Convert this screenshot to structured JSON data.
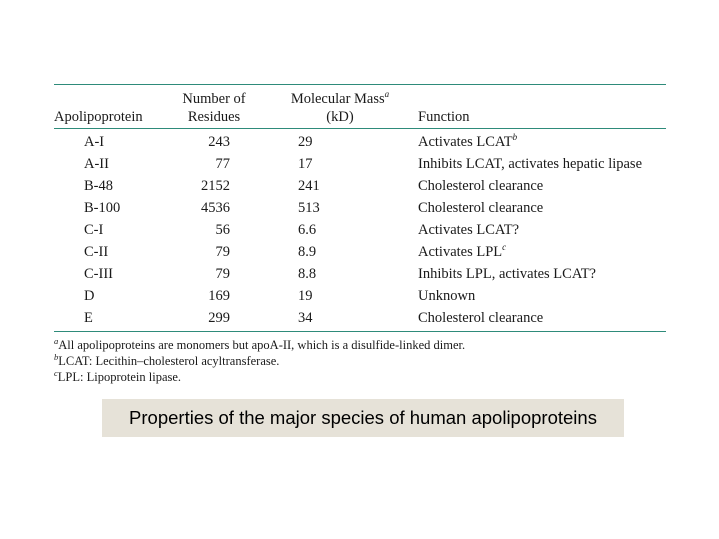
{
  "table": {
    "headers": {
      "apolipoprotein": "Apolipoprotein",
      "residues_line1": "Number of",
      "residues_line2": "Residues",
      "mass_line1": "Molecular Mass",
      "mass_sup": "a",
      "mass_line2": "(kD)",
      "function": "Function"
    },
    "rows": [
      {
        "name": "A-I",
        "residues": "243",
        "mass": "29",
        "function": "Activates LCAT",
        "sup": "b"
      },
      {
        "name": "A-II",
        "residues": "77",
        "mass": "17",
        "function": "Inhibits LCAT, activates hepatic lipase",
        "sup": ""
      },
      {
        "name": "B-48",
        "residues": "2152",
        "mass": "241",
        "function": "Cholesterol clearance",
        "sup": ""
      },
      {
        "name": "B-100",
        "residues": "4536",
        "mass": "513",
        "function": "Cholesterol clearance",
        "sup": ""
      },
      {
        "name": "C-I",
        "residues": "56",
        "mass": "6.6",
        "function": "Activates LCAT?",
        "sup": ""
      },
      {
        "name": "C-II",
        "residues": "79",
        "mass": "8.9",
        "function": "Activates LPL",
        "sup": "c"
      },
      {
        "name": "C-III",
        "residues": "79",
        "mass": "8.8",
        "function": "Inhibits LPL, activates LCAT?",
        "sup": ""
      },
      {
        "name": "D",
        "residues": "169",
        "mass": "19",
        "function": "Unknown",
        "sup": ""
      },
      {
        "name": "E",
        "residues": "299",
        "mass": "34",
        "function": "Cholesterol clearance",
        "sup": ""
      }
    ],
    "footnotes": [
      {
        "mark": "a",
        "text": "All apolipoproteins are monomers but apoA-II, which is a disulfide-linked dimer."
      },
      {
        "mark": "b",
        "text": "LCAT: Lecithin–cholesterol acyltransferase."
      },
      {
        "mark": "c",
        "text": "LPL: Lipoprotein lipase."
      }
    ]
  },
  "caption": "Properties of the major species of human apolipoproteins"
}
